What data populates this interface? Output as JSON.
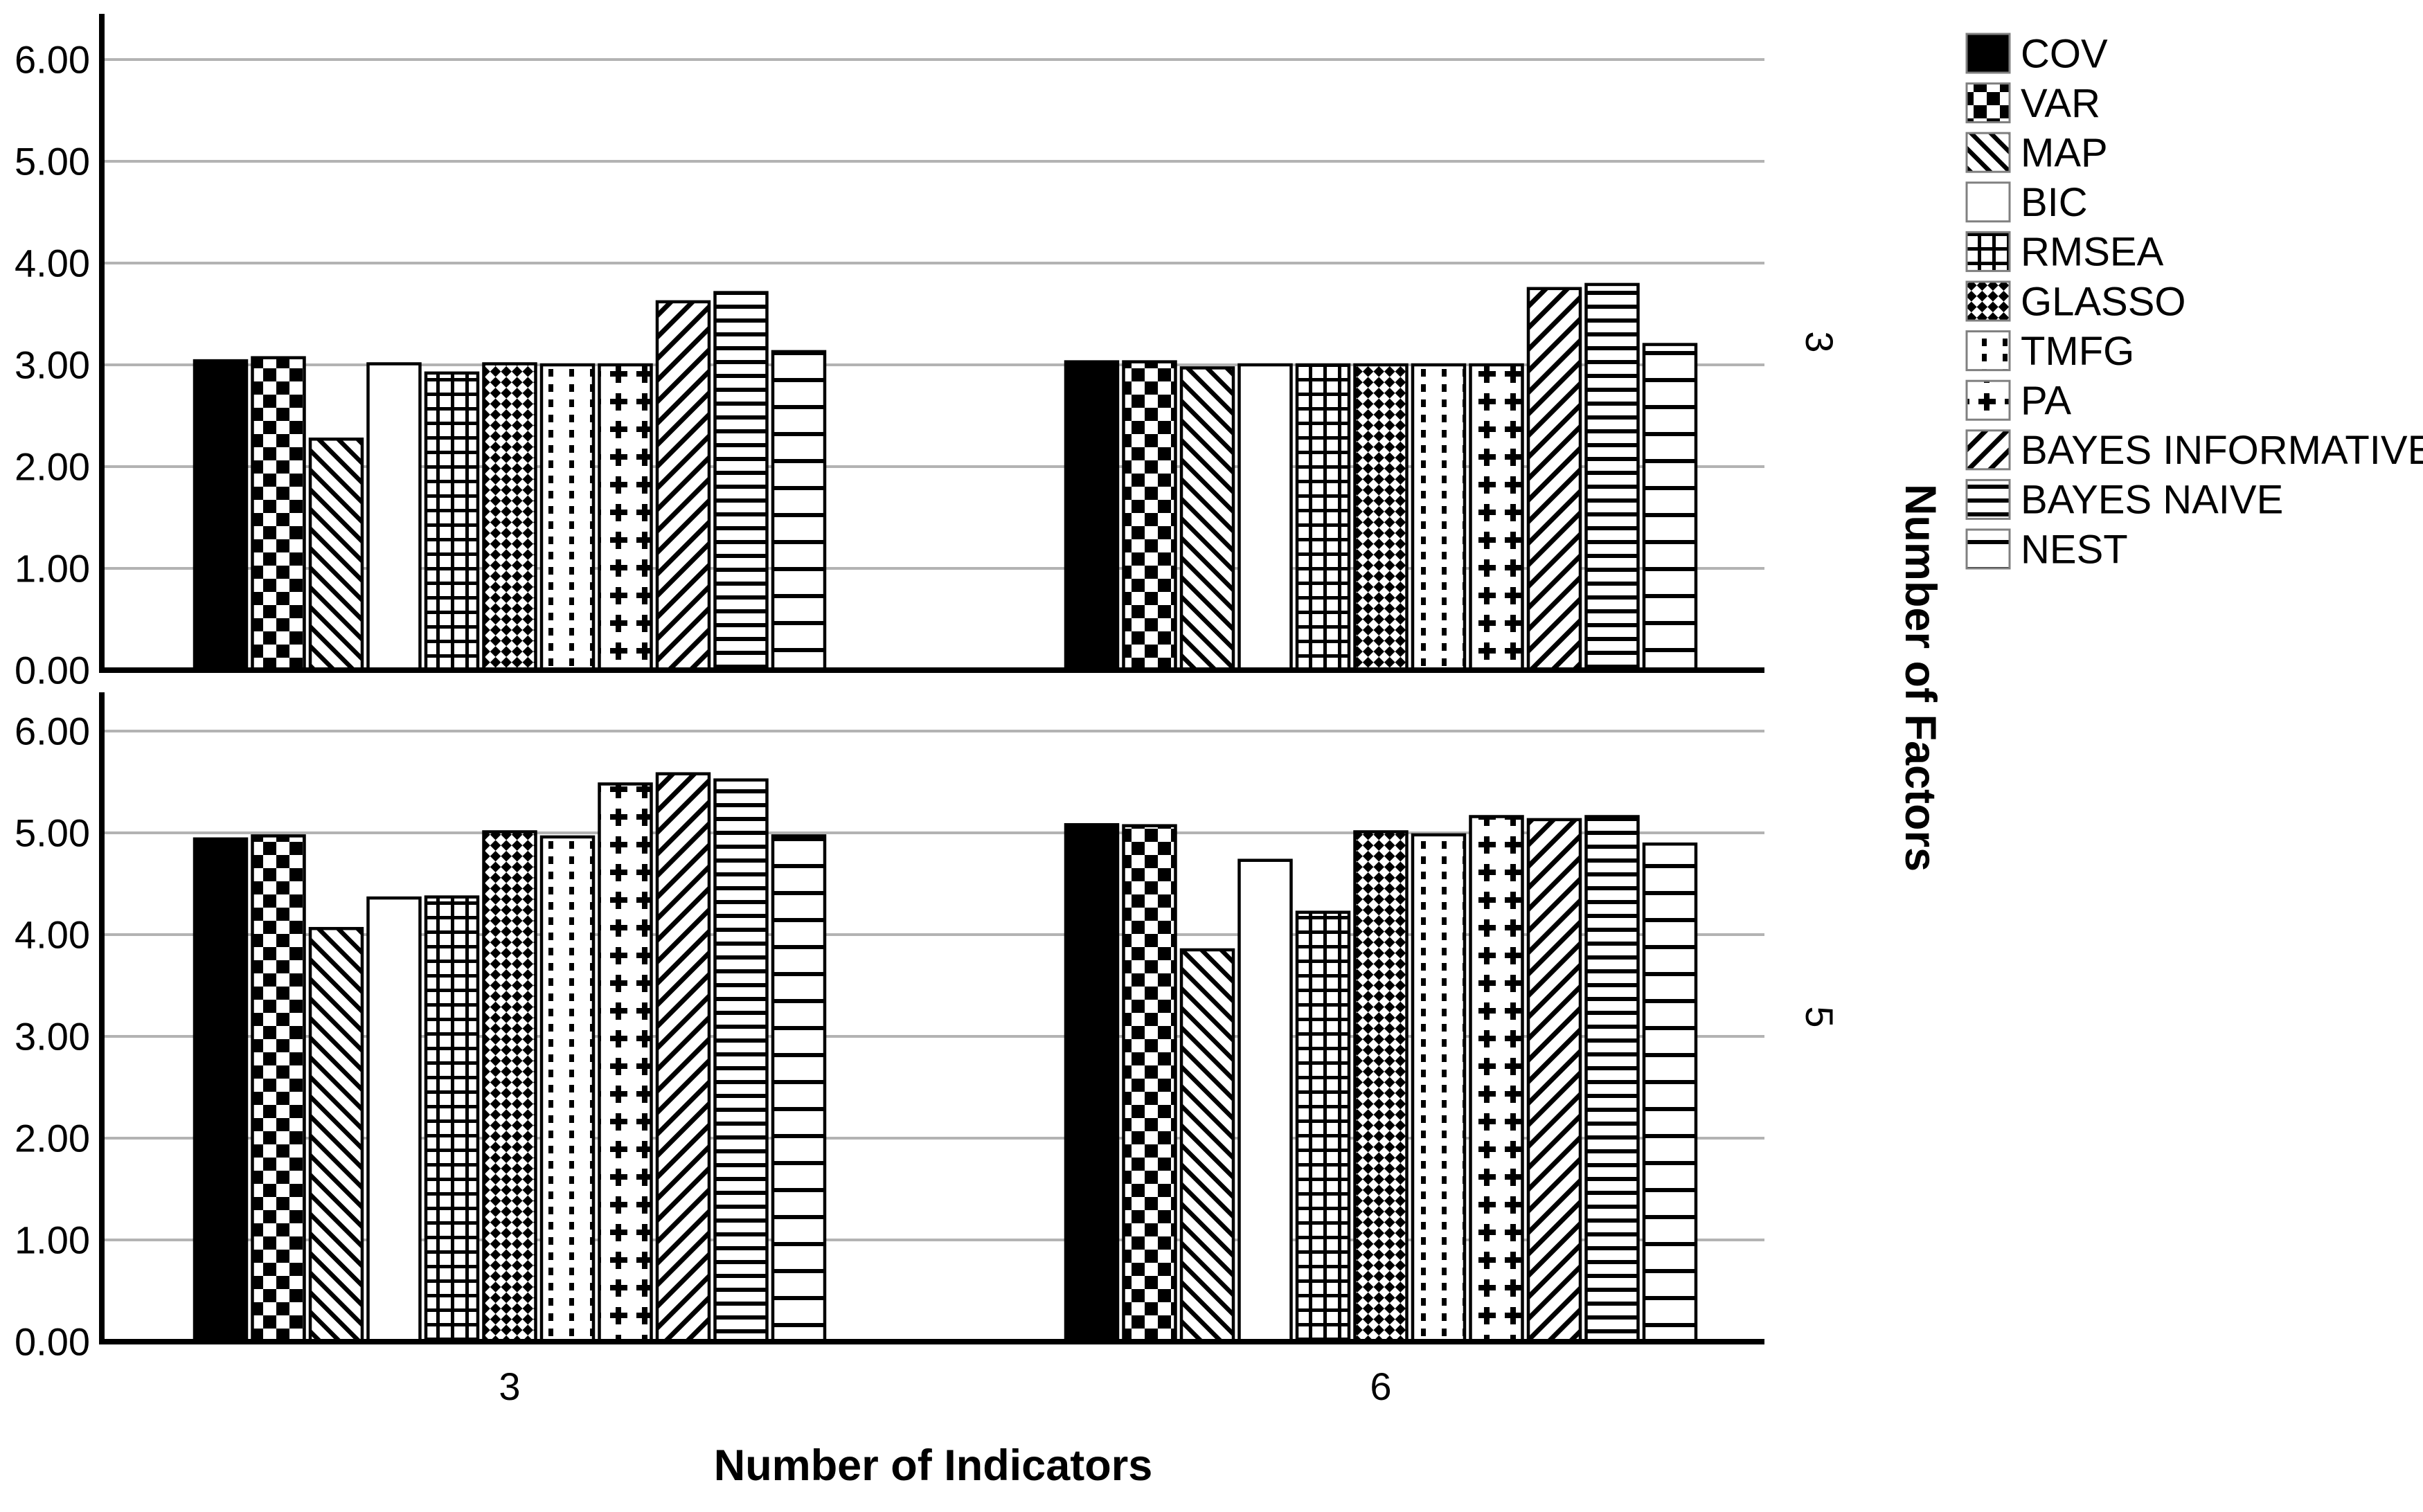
{
  "chart_data": {
    "type": "bar",
    "title": "",
    "xlabel": "Number of Indicators",
    "facet_axis_label": "Number of Factors",
    "x_categories": [
      "3",
      "6"
    ],
    "yticks": [
      "0.00",
      "1.00",
      "2.00",
      "3.00",
      "4.00",
      "5.00",
      "6.00"
    ],
    "ylim": [
      0,
      6.45
    ],
    "grid": true,
    "legend_position": "right",
    "legend": [
      {
        "label": "COV",
        "pattern": "solid"
      },
      {
        "label": "VAR",
        "pattern": "checker"
      },
      {
        "label": "MAP",
        "pattern": "diag-back"
      },
      {
        "label": "BIC",
        "pattern": "none"
      },
      {
        "label": "RMSEA",
        "pattern": "grid"
      },
      {
        "label": "GLASSO",
        "pattern": "diamond-checker"
      },
      {
        "label": "TMFG",
        "pattern": "dots"
      },
      {
        "label": "PA",
        "pattern": "plus"
      },
      {
        "label": "BAYES INFORMATIVE",
        "pattern": "diag-forward"
      },
      {
        "label": "BAYES NAIVE",
        "pattern": "hlines-dense"
      },
      {
        "label": "NEST",
        "pattern": "hlines-wide"
      }
    ],
    "panels": [
      {
        "facet_label": "3",
        "groups": [
          {
            "x": "3",
            "values": [
              3.04,
              3.07,
              2.27,
              3.01,
              2.92,
              3.01,
              3.0,
              3.0,
              3.62,
              3.71,
              3.13
            ]
          },
          {
            "x": "6",
            "values": [
              3.03,
              3.03,
              2.97,
              3.0,
              3.0,
              3.0,
              3.0,
              3.0,
              3.75,
              3.79,
              3.2
            ]
          }
        ]
      },
      {
        "facet_label": "5",
        "groups": [
          {
            "x": "3",
            "values": [
              4.94,
              4.97,
              4.06,
              4.36,
              4.37,
              5.01,
              4.96,
              5.48,
              5.58,
              5.52,
              4.97
            ]
          },
          {
            "x": "6",
            "values": [
              5.08,
              5.07,
              3.85,
              4.73,
              4.22,
              5.01,
              4.98,
              5.16,
              5.13,
              5.16,
              4.89
            ]
          }
        ]
      }
    ],
    "colors": {
      "bar_fill": "#000000",
      "bar_outline": "#000000",
      "gridline": "#b3b3b3",
      "text": "#000000",
      "background": "#ffffff"
    }
  }
}
